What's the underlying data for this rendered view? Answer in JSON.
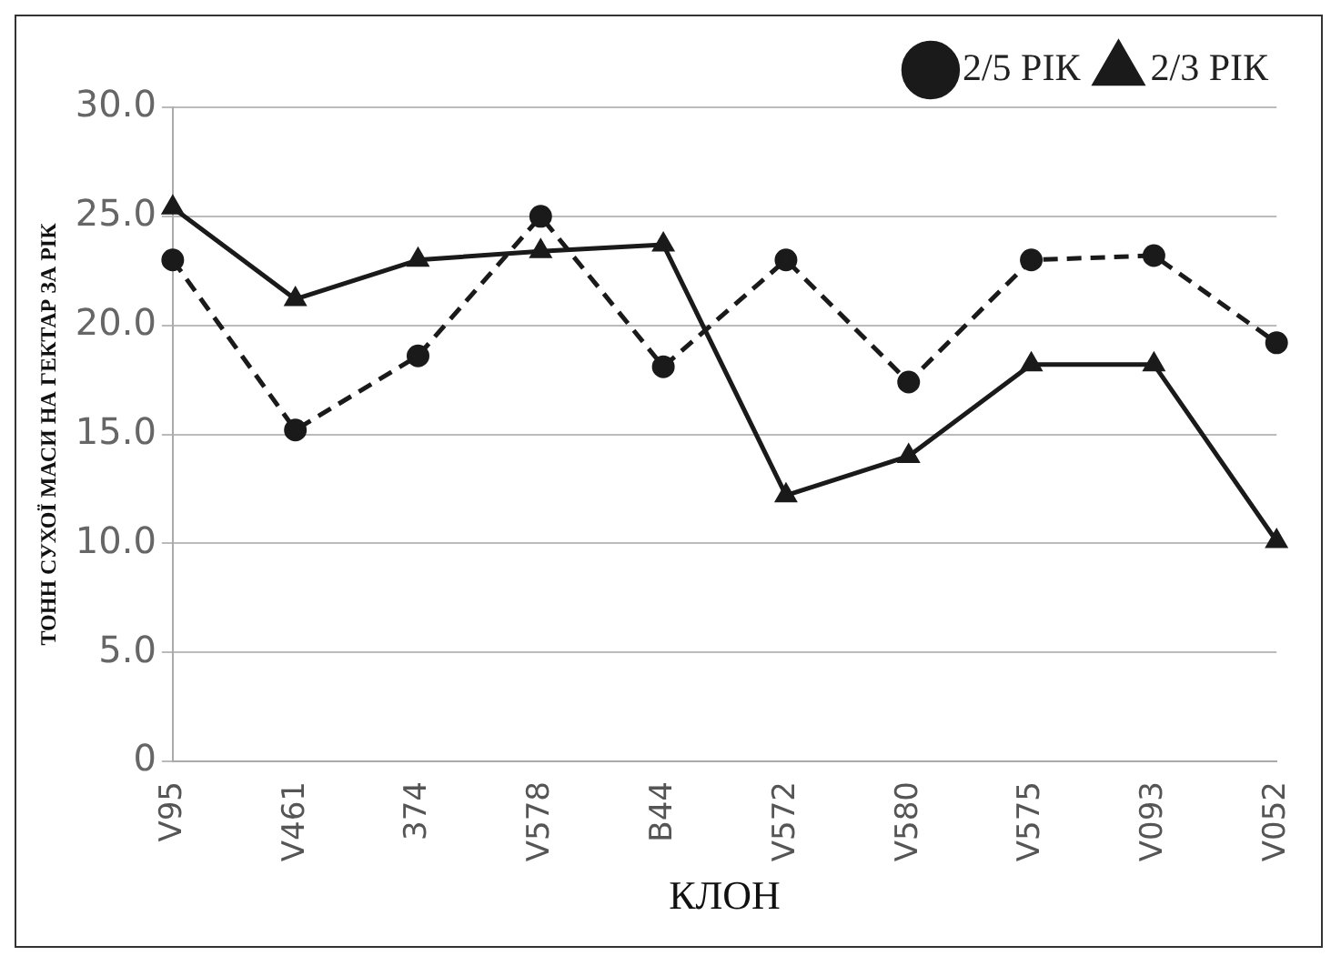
{
  "chart_data": {
    "type": "line",
    "xlabel": "КЛОН",
    "ylabel": "ТОНН СУХОЇ МАСИ НА ГЕКТАР ЗА РІК",
    "categories": [
      "V95",
      "V461",
      "374",
      "V578",
      "B44",
      "V572",
      "V580",
      "V575",
      "V093",
      "V052"
    ],
    "series": [
      {
        "name": "2/5 РІК",
        "color": "#1a1a1a",
        "marker": "circle",
        "line_style": "dashed",
        "values": [
          23.0,
          15.2,
          18.6,
          25.0,
          18.1,
          23.0,
          17.4,
          23.0,
          23.2,
          19.2
        ]
      },
      {
        "name": "2/3 РІК",
        "color": "#1a1a1a",
        "marker": "triangle",
        "line_style": "solid",
        "values": [
          25.4,
          21.2,
          23.0,
          23.4,
          23.7,
          12.2,
          14.0,
          18.2,
          18.2,
          10.1
        ]
      }
    ],
    "ylim": [
      0,
      30
    ],
    "yticks": [
      {
        "value": 0,
        "label": "0"
      },
      {
        "value": 5,
        "label": "5.0"
      },
      {
        "value": 10,
        "label": "10.0"
      },
      {
        "value": 15,
        "label": "15.0"
      },
      {
        "value": 20,
        "label": "20.0"
      },
      {
        "value": 25,
        "label": "25.0"
      },
      {
        "value": 30,
        "label": "30.0"
      }
    ],
    "grid": "y",
    "legend": "top right"
  }
}
